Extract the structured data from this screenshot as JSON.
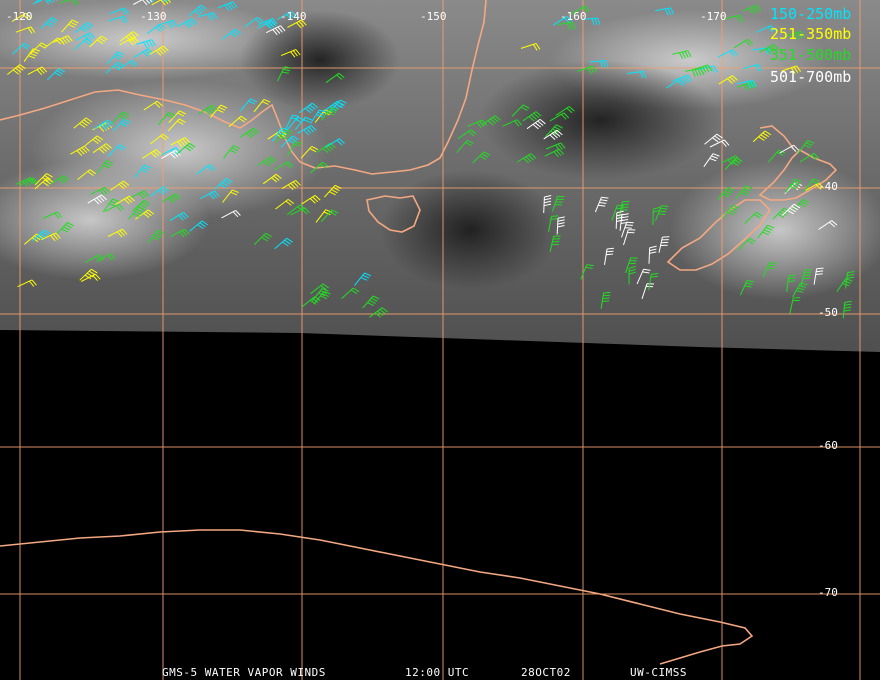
{
  "map": {
    "longitude_labels": [
      "-120",
      "-130",
      "-140",
      "-150",
      "-160",
      "-170"
    ],
    "latitude_labels": [
      "-40",
      "-50",
      "-60",
      "-70"
    ],
    "colors": {
      "grid": "#f0a070",
      "coast": "#f4a882",
      "background": "#000000"
    }
  },
  "legend": {
    "items": [
      {
        "label": "150-250mb",
        "color": "#00e5ff"
      },
      {
        "label": "251-350mb",
        "color": "#ffff00"
      },
      {
        "label": "351-500mb",
        "color": "#22dd22"
      },
      {
        "label": "501-700mb",
        "color": "#ffffff"
      }
    ]
  },
  "footer": {
    "product": "GMS-5 WATER VAPOR WINDS",
    "time": "12:00 UTC",
    "date": "28OCT02",
    "source": "UW-CIMSS"
  }
}
